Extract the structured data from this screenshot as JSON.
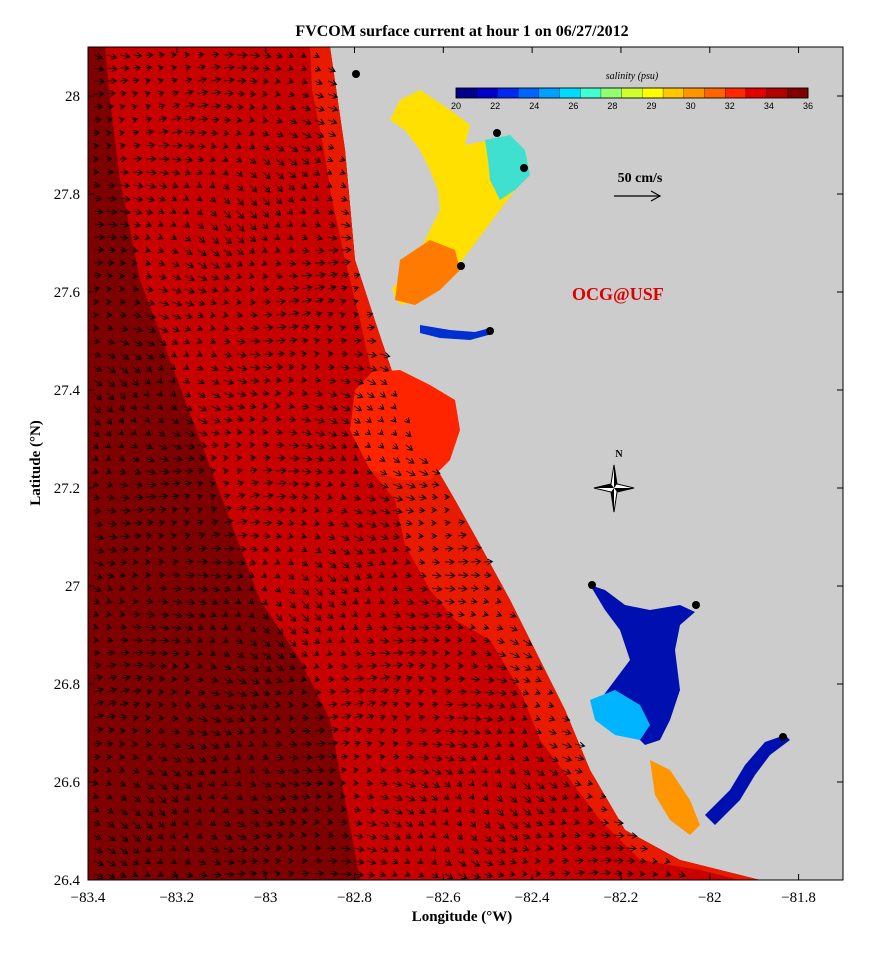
{
  "title": "FVCOM surface current at hour 1 on 06/27/2012",
  "axes": {
    "xlabel": "Longitude (°W)",
    "ylabel": "Latitude (°N)",
    "x_ticks": [
      "−83.4",
      "−83.2",
      "−83",
      "−82.8",
      "−82.6",
      "−82.4",
      "−82.2",
      "−82",
      "−81.8"
    ],
    "y_ticks": [
      "28",
      "27.8",
      "27.6",
      "27.4",
      "27.2",
      "27",
      "26.8",
      "26.6",
      "26.4"
    ],
    "xlim": [
      -83.4,
      -81.7
    ],
    "ylim": [
      26.4,
      28.1
    ]
  },
  "colorbar": {
    "title": "salinity (psu)",
    "labels": [
      "20",
      "22",
      "24",
      "26",
      "28",
      "29",
      "30",
      "32",
      "34",
      "36"
    ],
    "colors": [
      "#00008b",
      "#0000c8",
      "#0028f0",
      "#0064ff",
      "#00a0ff",
      "#00dcff",
      "#40ffd0",
      "#90ff70",
      "#d0ff30",
      "#ffff00",
      "#ffc800",
      "#ff9600",
      "#ff6400",
      "#ff2800",
      "#e00000",
      "#b00000",
      "#800000"
    ]
  },
  "reference_vector": {
    "label": "50 cm/s"
  },
  "watermark": "OCG@USF",
  "compass": {
    "label": "N"
  },
  "colors": {
    "land": "#cccccc",
    "offshore": "#7f0000",
    "midshelf": "#c80000",
    "nearshore": "#ee1c00"
  }
}
